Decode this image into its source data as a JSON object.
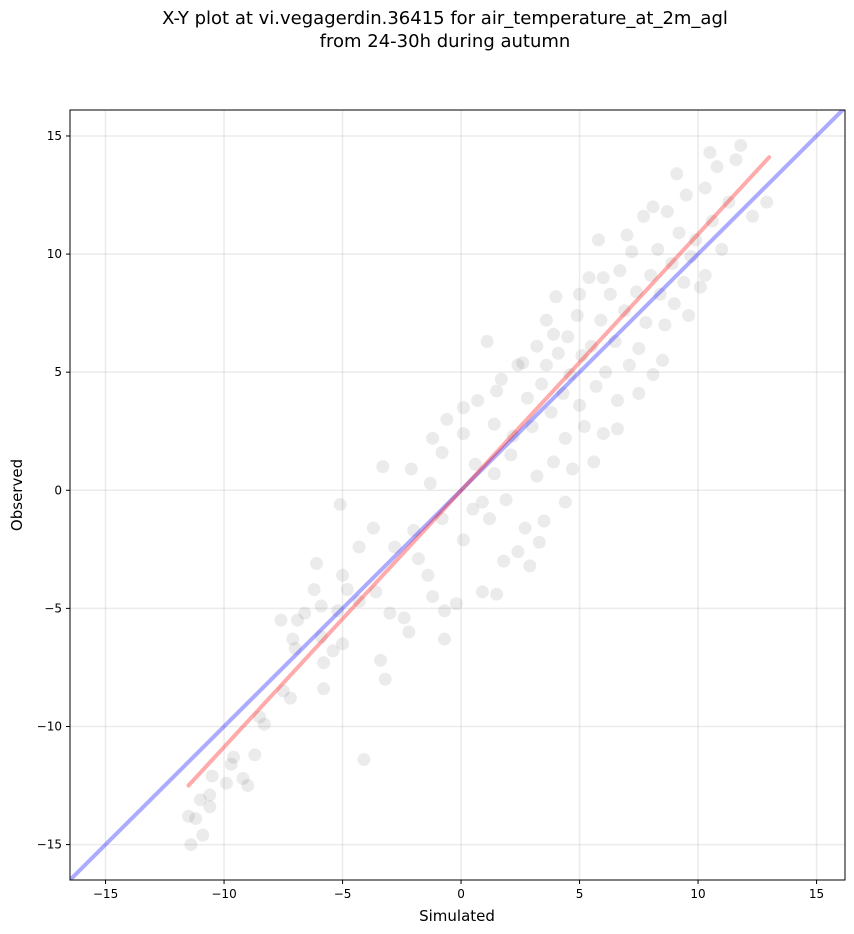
{
  "chart_data": {
    "type": "scatter",
    "title": [
      "X-Y plot at vi.vegagerdin.36415 for air_temperature_at_2m_agl",
      "from 24-30h during autumn"
    ],
    "xlabel": "Simulated",
    "ylabel": "Observed",
    "xlim": [
      -16.5,
      16.2
    ],
    "ylim": [
      -16.5,
      16.1
    ],
    "xticks": [
      -15,
      -10,
      -5,
      0,
      5,
      10,
      15
    ],
    "yticks": [
      -15,
      -10,
      -5,
      0,
      5,
      10,
      15
    ],
    "tick_labels": [
      "−15",
      "−10",
      "−5",
      "0",
      "5",
      "10",
      "15"
    ],
    "grid": true,
    "point_color": "#000000",
    "point_opacity": 0.08,
    "series": [
      {
        "type": "scatter",
        "points": [
          [
            -11.4,
            -15.0
          ],
          [
            -11.5,
            -13.8
          ],
          [
            -11.2,
            -13.9
          ],
          [
            -11.0,
            -13.1
          ],
          [
            -10.9,
            -14.6
          ],
          [
            -10.6,
            -13.4
          ],
          [
            -10.6,
            -12.9
          ],
          [
            -10.5,
            -12.1
          ],
          [
            -9.9,
            -12.4
          ],
          [
            -9.7,
            -11.6
          ],
          [
            -9.6,
            -11.3
          ],
          [
            -9.2,
            -12.2
          ],
          [
            -9.0,
            -12.5
          ],
          [
            -8.7,
            -11.2
          ],
          [
            -8.5,
            -9.6
          ],
          [
            -8.3,
            -9.9
          ],
          [
            -7.5,
            -8.5
          ],
          [
            -7.2,
            -8.8
          ],
          [
            -7.0,
            -6.7
          ],
          [
            -7.1,
            -6.3
          ],
          [
            -6.9,
            -5.5
          ],
          [
            -6.6,
            -5.2
          ],
          [
            -6.2,
            -4.2
          ],
          [
            -5.9,
            -4.9
          ],
          [
            -5.9,
            -6.2
          ],
          [
            -5.8,
            -7.3
          ],
          [
            -5.8,
            -8.4
          ],
          [
            -5.4,
            -6.8
          ],
          [
            -5.2,
            -5.1
          ],
          [
            -5.0,
            -6.5
          ],
          [
            -5.1,
            -0.6
          ],
          [
            -5.0,
            -3.6
          ],
          [
            -4.8,
            -4.2
          ],
          [
            -4.3,
            -4.7
          ],
          [
            -4.1,
            -11.4
          ],
          [
            -3.7,
            -1.6
          ],
          [
            -3.6,
            -4.3
          ],
          [
            -3.4,
            -7.2
          ],
          [
            -3.2,
            -8.0
          ],
          [
            -3.0,
            -5.2
          ],
          [
            -3.3,
            1.0
          ],
          [
            -2.8,
            -2.4
          ],
          [
            -2.4,
            -5.4
          ],
          [
            -2.2,
            -6.0
          ],
          [
            -2.0,
            -1.7
          ],
          [
            -1.8,
            -2.9
          ],
          [
            -1.4,
            -3.6
          ],
          [
            -1.2,
            -4.5
          ],
          [
            -1.3,
            0.3
          ],
          [
            -0.8,
            -1.2
          ],
          [
            -0.8,
            1.6
          ],
          [
            -0.7,
            -5.1
          ],
          [
            -0.7,
            -6.3
          ],
          [
            -0.6,
            3.0
          ],
          [
            -0.2,
            -4.8
          ],
          [
            0.1,
            -2.1
          ],
          [
            0.1,
            2.4
          ],
          [
            0.5,
            -0.8
          ],
          [
            0.6,
            1.1
          ],
          [
            0.7,
            3.8
          ],
          [
            0.9,
            -0.5
          ],
          [
            0.9,
            -4.3
          ],
          [
            1.1,
            6.3
          ],
          [
            1.2,
            -1.2
          ],
          [
            1.4,
            0.7
          ],
          [
            1.4,
            2.8
          ],
          [
            1.5,
            -4.4
          ],
          [
            1.7,
            4.7
          ],
          [
            1.9,
            -0.4
          ],
          [
            2.1,
            1.5
          ],
          [
            2.2,
            2.3
          ],
          [
            2.4,
            5.3
          ],
          [
            2.4,
            -2.6
          ],
          [
            2.7,
            -1.6
          ],
          [
            2.8,
            3.9
          ],
          [
            2.9,
            -3.2
          ],
          [
            3.0,
            2.7
          ],
          [
            3.2,
            6.1
          ],
          [
            3.2,
            0.6
          ],
          [
            3.4,
            4.5
          ],
          [
            3.5,
            -1.3
          ],
          [
            3.6,
            5.3
          ],
          [
            3.6,
            7.2
          ],
          [
            3.8,
            3.3
          ],
          [
            3.9,
            1.2
          ],
          [
            4.0,
            8.2
          ],
          [
            4.1,
            5.8
          ],
          [
            4.3,
            4.1
          ],
          [
            4.4,
            2.2
          ],
          [
            4.5,
            6.5
          ],
          [
            4.6,
            4.9
          ],
          [
            4.7,
            0.9
          ],
          [
            4.9,
            7.4
          ],
          [
            5.0,
            3.6
          ],
          [
            5.1,
            5.7
          ],
          [
            5.2,
            2.7
          ],
          [
            5.4,
            9.0
          ],
          [
            5.5,
            6.1
          ],
          [
            5.7,
            4.4
          ],
          [
            5.8,
            10.6
          ],
          [
            5.9,
            7.2
          ],
          [
            6.0,
            2.4
          ],
          [
            6.1,
            5.0
          ],
          [
            6.3,
            8.3
          ],
          [
            6.5,
            6.3
          ],
          [
            6.6,
            3.8
          ],
          [
            6.7,
            9.3
          ],
          [
            6.9,
            7.6
          ],
          [
            7.1,
            5.3
          ],
          [
            7.2,
            10.1
          ],
          [
            7.4,
            8.4
          ],
          [
            7.5,
            6.0
          ],
          [
            7.7,
            11.6
          ],
          [
            7.8,
            7.1
          ],
          [
            8.0,
            9.1
          ],
          [
            8.1,
            4.9
          ],
          [
            8.3,
            10.2
          ],
          [
            8.4,
            8.3
          ],
          [
            8.6,
            7.0
          ],
          [
            8.7,
            11.8
          ],
          [
            8.9,
            9.6
          ],
          [
            9.0,
            7.9
          ],
          [
            9.2,
            10.9
          ],
          [
            9.4,
            8.8
          ],
          [
            9.5,
            12.5
          ],
          [
            9.7,
            9.9
          ],
          [
            9.9,
            10.6
          ],
          [
            10.1,
            8.6
          ],
          [
            10.3,
            12.8
          ],
          [
            10.6,
            11.4
          ],
          [
            10.8,
            13.7
          ],
          [
            11.0,
            10.2
          ],
          [
            11.3,
            12.2
          ],
          [
            11.6,
            14.0
          ],
          [
            11.8,
            14.6
          ],
          [
            12.3,
            11.6
          ],
          [
            12.9,
            12.2
          ],
          [
            10.5,
            14.3
          ],
          [
            9.1,
            13.4
          ],
          [
            8.1,
            12.0
          ],
          [
            7.0,
            10.8
          ],
          [
            6.0,
            9.0
          ],
          [
            5.0,
            8.3
          ],
          [
            3.9,
            6.6
          ],
          [
            2.6,
            5.4
          ],
          [
            1.5,
            4.2
          ],
          [
            0.1,
            3.5
          ],
          [
            -1.2,
            2.2
          ],
          [
            -2.1,
            0.9
          ],
          [
            -4.3,
            -2.4
          ],
          [
            -6.1,
            -3.1
          ],
          [
            -7.6,
            -5.5
          ],
          [
            1.8,
            -3.0
          ],
          [
            3.3,
            -2.2
          ],
          [
            4.4,
            -0.5
          ],
          [
            5.6,
            1.2
          ],
          [
            6.6,
            2.6
          ],
          [
            7.5,
            4.1
          ],
          [
            8.5,
            5.5
          ],
          [
            9.6,
            7.4
          ],
          [
            10.3,
            9.1
          ]
        ]
      },
      {
        "type": "line",
        "color": "#0000ff",
        "opacity": 0.33,
        "points": [
          [
            -16.5,
            -16.5
          ],
          [
            16.2,
            16.2
          ]
        ]
      },
      {
        "type": "line",
        "color": "#ff0000",
        "opacity": 0.33,
        "points": [
          [
            -11.5,
            -12.5
          ],
          [
            13.0,
            14.1
          ]
        ]
      }
    ]
  }
}
